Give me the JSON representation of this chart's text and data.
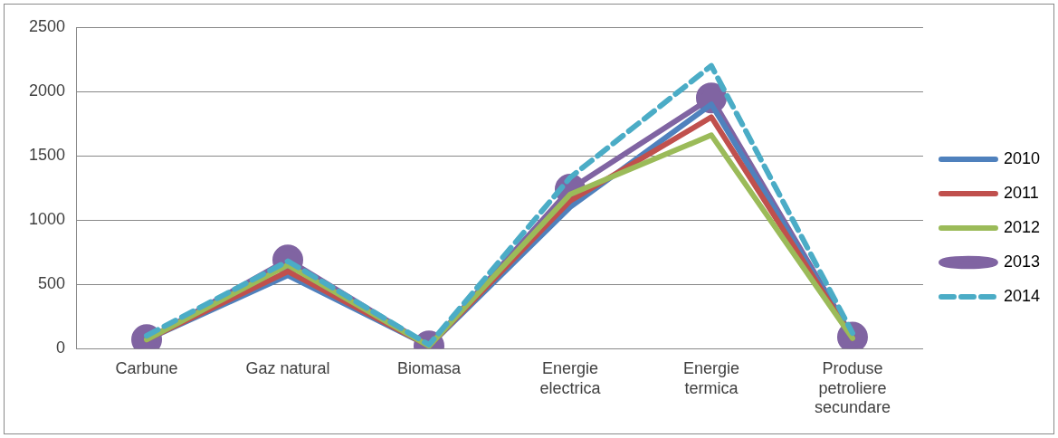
{
  "chart_data": {
    "type": "line",
    "categories": [
      "Carbune",
      "Gaz natural",
      "Biomasa",
      "Energie electrica",
      "Energie termica",
      "Produse petroliere secundare"
    ],
    "series": [
      {
        "name": "2010",
        "color": "#4f81bd",
        "values": [
          70,
          570,
          20,
          1100,
          1900,
          80
        ]
      },
      {
        "name": "2011",
        "color": "#c0504d",
        "values": [
          70,
          600,
          20,
          1150,
          1800,
          80
        ]
      },
      {
        "name": "2012",
        "color": "#9bbb59",
        "values": [
          70,
          650,
          20,
          1200,
          1660,
          80
        ]
      },
      {
        "name": "2013",
        "color": "#8064a2",
        "values": [
          70,
          690,
          20,
          1240,
          1950,
          90
        ],
        "marker": "circle"
      },
      {
        "name": "2014",
        "color": "#4bacc6",
        "values": [
          100,
          680,
          30,
          1330,
          2200,
          120
        ],
        "line_style": "dashed"
      }
    ],
    "ylim": [
      0,
      2500
    ],
    "yticks": [
      0,
      500,
      1000,
      1500,
      2000,
      2500
    ],
    "grid": "y",
    "legend": "right",
    "marker": "none",
    "line_style": "solid"
  }
}
